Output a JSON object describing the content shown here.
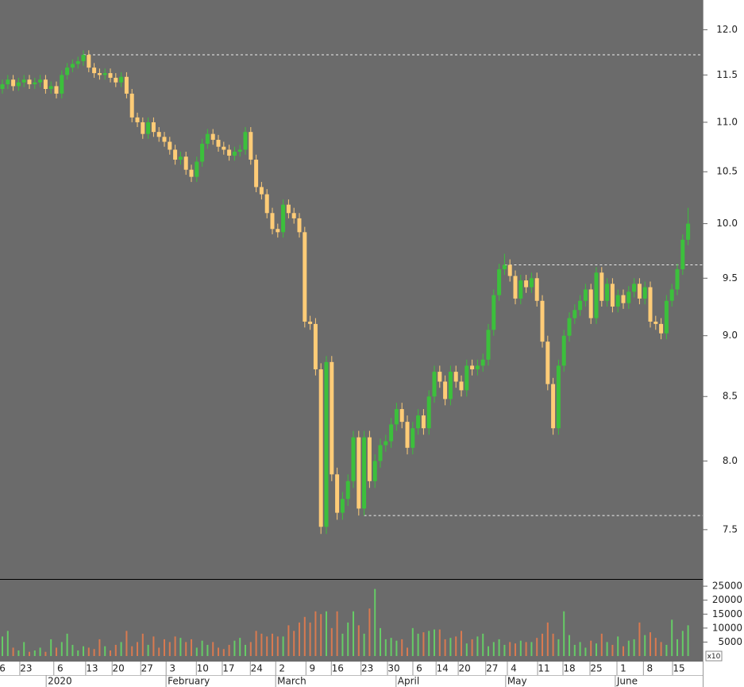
{
  "chart_data": {
    "type": "candlestick",
    "open": [
      11.35,
      11.4,
      11.45,
      11.38,
      11.42,
      11.45,
      11.4,
      11.42,
      11.45,
      11.35,
      11.38,
      11.3,
      11.5,
      11.58,
      11.62,
      11.65,
      11.72,
      11.58,
      11.52,
      11.5,
      11.52,
      11.47,
      11.42,
      11.48,
      11.3,
      11.05,
      11.0,
      10.88,
      11.0,
      10.9,
      10.85,
      10.8,
      10.72,
      10.62,
      10.65,
      10.52,
      10.45,
      10.6,
      10.78,
      10.88,
      10.82,
      10.75,
      10.72,
      10.66,
      10.7,
      10.72,
      10.9,
      10.62,
      10.35,
      10.28,
      10.1,
      9.95,
      9.92,
      10.18,
      10.1,
      10.05,
      9.92,
      9.12,
      9.1,
      8.72,
      7.52,
      8.78,
      7.9,
      7.62,
      7.72,
      7.85,
      8.18,
      7.65,
      8.18,
      7.85,
      8.0,
      8.12,
      8.15,
      8.28,
      8.4,
      8.3,
      8.1,
      8.25,
      8.35,
      8.25,
      8.5,
      8.7,
      8.62,
      8.48,
      8.7,
      8.62,
      8.55,
      8.75,
      8.72,
      8.75,
      8.8,
      9.05,
      9.35,
      9.58,
      9.62,
      9.52,
      9.32,
      9.48,
      9.42,
      9.5,
      9.3,
      8.95,
      8.6,
      8.25,
      8.75,
      9.0,
      9.15,
      9.22,
      9.3,
      9.4,
      9.15,
      9.55,
      9.3,
      9.45,
      9.25,
      9.35,
      9.28,
      9.38,
      9.45,
      9.32,
      9.42,
      9.12,
      9.1,
      9.02,
      9.3,
      9.4,
      9.58,
      9.85
    ],
    "high": [
      11.45,
      11.5,
      11.5,
      11.47,
      11.5,
      11.5,
      11.47,
      11.5,
      11.5,
      11.43,
      11.43,
      11.55,
      11.63,
      11.67,
      11.7,
      11.77,
      11.77,
      11.63,
      11.57,
      11.57,
      11.57,
      11.52,
      11.53,
      11.53,
      11.35,
      11.1,
      11.05,
      11.05,
      11.05,
      10.95,
      10.9,
      10.85,
      10.77,
      10.7,
      10.7,
      10.57,
      10.65,
      10.83,
      10.93,
      10.93,
      10.87,
      10.8,
      10.77,
      10.75,
      10.77,
      10.95,
      10.95,
      10.67,
      10.4,
      10.33,
      10.15,
      10.0,
      10.23,
      10.23,
      10.15,
      10.1,
      9.97,
      9.17,
      9.15,
      8.77,
      8.83,
      8.83,
      7.95,
      7.77,
      7.9,
      8.23,
      8.23,
      8.23,
      8.23,
      8.05,
      8.17,
      8.2,
      8.33,
      8.45,
      8.45,
      8.35,
      8.3,
      8.4,
      8.4,
      8.55,
      8.75,
      8.75,
      8.67,
      8.75,
      8.75,
      8.67,
      8.8,
      8.8,
      8.8,
      8.85,
      9.1,
      9.4,
      9.63,
      9.72,
      9.67,
      9.57,
      9.53,
      9.53,
      9.55,
      9.55,
      9.35,
      9.0,
      8.65,
      8.8,
      9.05,
      9.2,
      9.27,
      9.35,
      9.45,
      9.45,
      9.6,
      9.6,
      9.5,
      9.5,
      9.4,
      9.4,
      9.43,
      9.5,
      9.5,
      9.47,
      9.47,
      9.17,
      9.15,
      9.35,
      9.45,
      9.63,
      9.9,
      10.15
    ],
    "low": [
      11.3,
      11.35,
      11.33,
      11.33,
      11.37,
      11.35,
      11.35,
      11.37,
      11.3,
      11.3,
      11.25,
      11.25,
      11.45,
      11.53,
      11.57,
      11.6,
      11.53,
      11.47,
      11.45,
      11.45,
      11.42,
      11.37,
      11.37,
      11.25,
      11.0,
      10.95,
      10.83,
      10.83,
      10.85,
      10.8,
      10.75,
      10.67,
      10.57,
      10.57,
      10.47,
      10.4,
      10.4,
      10.55,
      10.73,
      10.77,
      10.7,
      10.67,
      10.61,
      10.61,
      10.65,
      10.67,
      10.57,
      10.3,
      10.23,
      10.05,
      9.9,
      9.87,
      9.87,
      10.05,
      10.0,
      9.87,
      9.07,
      9.05,
      8.67,
      7.47,
      7.47,
      7.85,
      7.57,
      7.57,
      7.67,
      7.8,
      7.6,
      7.6,
      7.8,
      7.8,
      7.95,
      8.07,
      8.1,
      8.23,
      8.25,
      8.05,
      8.05,
      8.2,
      8.2,
      8.2,
      8.45,
      8.57,
      8.43,
      8.43,
      8.57,
      8.5,
      8.5,
      8.67,
      8.67,
      8.7,
      8.75,
      9.0,
      9.3,
      9.53,
      9.47,
      9.27,
      9.27,
      9.37,
      9.37,
      9.25,
      8.9,
      8.55,
      8.2,
      8.2,
      8.7,
      8.95,
      9.1,
      9.17,
      9.25,
      9.1,
      9.1,
      9.25,
      9.25,
      9.2,
      9.2,
      9.23,
      9.23,
      9.33,
      9.27,
      9.27,
      9.07,
      9.05,
      8.97,
      8.97,
      9.25,
      9.35,
      9.53,
      9.8
    ],
    "close": [
      11.4,
      11.45,
      11.38,
      11.42,
      11.45,
      11.4,
      11.42,
      11.45,
      11.35,
      11.38,
      11.3,
      11.5,
      11.58,
      11.62,
      11.65,
      11.72,
      11.58,
      11.52,
      11.5,
      11.52,
      11.47,
      11.42,
      11.48,
      11.3,
      11.05,
      11.0,
      10.88,
      11.0,
      10.9,
      10.85,
      10.8,
      10.72,
      10.62,
      10.65,
      10.52,
      10.45,
      10.6,
      10.78,
      10.88,
      10.82,
      10.75,
      10.72,
      10.66,
      10.7,
      10.72,
      10.9,
      10.62,
      10.35,
      10.28,
      10.1,
      9.95,
      9.92,
      10.18,
      10.1,
      10.05,
      9.92,
      9.12,
      9.1,
      8.72,
      7.52,
      8.78,
      7.9,
      7.62,
      7.72,
      7.85,
      8.18,
      7.65,
      8.18,
      7.85,
      8.0,
      8.12,
      8.15,
      8.28,
      8.4,
      8.3,
      8.1,
      8.25,
      8.35,
      8.25,
      8.5,
      8.7,
      8.62,
      8.48,
      8.7,
      8.62,
      8.55,
      8.75,
      8.72,
      8.75,
      8.8,
      9.05,
      9.35,
      9.58,
      9.62,
      9.52,
      9.32,
      9.48,
      9.42,
      9.5,
      9.3,
      8.95,
      8.6,
      8.25,
      8.75,
      9.0,
      9.15,
      9.22,
      9.3,
      9.4,
      9.15,
      9.55,
      9.3,
      9.45,
      9.25,
      9.35,
      9.28,
      9.38,
      9.45,
      9.32,
      9.42,
      9.12,
      9.1,
      9.02,
      9.3,
      9.4,
      9.58,
      9.85,
      10.0
    ],
    "volume": [
      7000,
      9000,
      3000,
      2000,
      5000,
      1500,
      2000,
      3000,
      1500,
      6000,
      3000,
      5000,
      8000,
      4000,
      2000,
      3500,
      3000,
      2500,
      6000,
      3500,
      2000,
      4000,
      5000,
      9000,
      3500,
      5000,
      8000,
      4000,
      7000,
      3000,
      6000,
      5000,
      7000,
      6500,
      5000,
      6000,
      3000,
      5500,
      4000,
      5000,
      3000,
      2500,
      4000,
      5500,
      6500,
      4000,
      5000,
      9000,
      8000,
      7000,
      8000,
      7000,
      7000,
      11000,
      9000,
      12000,
      14000,
      12000,
      16000,
      15000,
      16000,
      10000,
      16000,
      8000,
      12000,
      16000,
      11000,
      8000,
      17000,
      24000,
      10000,
      6000,
      6500,
      5500,
      6000,
      3000,
      10000,
      8000,
      8500,
      9000,
      9500,
      9500,
      6000,
      6500,
      7000,
      9000,
      4500,
      6000,
      7000,
      8000,
      3500,
      5000,
      6000,
      4000,
      5000,
      4500,
      5500,
      5000,
      5000,
      6500,
      8000,
      12000,
      8000,
      6000,
      16000,
      7500,
      4000,
      5000,
      3000,
      5500,
      4500,
      8000,
      5000,
      4000,
      7000,
      3500,
      5500,
      6000,
      12000,
      7500,
      8500,
      6500,
      5000,
      4000,
      13000,
      6000,
      9000,
      11000
    ],
    "up_color": "#3cc03c",
    "down_color": "#ffcc77",
    "ylim": [
      7.16,
      12.34
    ],
    "log_scale": true,
    "yticks": [
      {
        "value": 12,
        "label": "12.0"
      },
      11.5,
      {
        "value": 11,
        "label": "11.0"
      },
      10.5,
      {
        "value": 10,
        "label": "10.0"
      },
      9.5,
      {
        "value": 9,
        "label": "9.0"
      },
      8.5,
      {
        "value": 8,
        "label": "8.0"
      },
      7.5
    ],
    "hlines": [
      {
        "value": 11.72,
        "from": 15
      },
      {
        "value": 9.62,
        "from": 93
      },
      {
        "value": 7.6,
        "from": 67
      }
    ],
    "xticks": [
      {
        "value": 0,
        "label": "6"
      },
      {
        "value": 4.4,
        "label": "23"
      },
      {
        "value": 10.7,
        "label": "6"
      },
      {
        "value": 16.6,
        "label": "13"
      },
      {
        "value": 21.5,
        "label": "20"
      },
      {
        "value": 26.8,
        "label": "27"
      },
      {
        "value": 31.5,
        "label": "3"
      },
      {
        "value": 37.1,
        "label": "10"
      },
      {
        "value": 41.9,
        "label": "17"
      },
      {
        "value": 47.1,
        "label": "24"
      },
      {
        "value": 51.8,
        "label": "2"
      },
      {
        "value": 57.4,
        "label": "9"
      },
      {
        "value": 62.1,
        "label": "16"
      },
      {
        "value": 67.6,
        "label": "23"
      },
      {
        "value": 72.5,
        "label": "30"
      },
      {
        "value": 77.2,
        "label": "6"
      },
      {
        "value": 81.5,
        "label": "14"
      },
      {
        "value": 85.6,
        "label": "20"
      },
      {
        "value": 90.7,
        "label": "27"
      },
      {
        "value": 94.7,
        "label": "4"
      },
      {
        "value": 100.3,
        "label": "11"
      },
      {
        "value": 105.0,
        "label": "18"
      },
      {
        "value": 110.0,
        "label": "25"
      },
      {
        "value": 115.0,
        "label": "1"
      },
      {
        "value": 119.9,
        "label": "8"
      },
      {
        "value": 125.3,
        "label": "15"
      }
    ],
    "month_labels": [
      {
        "value": 8.7,
        "label": "2020"
      },
      {
        "value": 30.9,
        "label": "February"
      },
      {
        "value": 51.2,
        "label": "March"
      },
      {
        "value": 73.5,
        "label": "April"
      },
      {
        "value": 93.8,
        "label": "May"
      },
      {
        "value": 114.1,
        "label": "June"
      }
    ],
    "volume_panel": {
      "ylim": [
        0,
        27300
      ],
      "yticks": [
        5000,
        10000,
        15000,
        20000,
        25000
      ],
      "label": "x10",
      "up_color": "#66cc66",
      "down_color": "#d97a50"
    }
  }
}
